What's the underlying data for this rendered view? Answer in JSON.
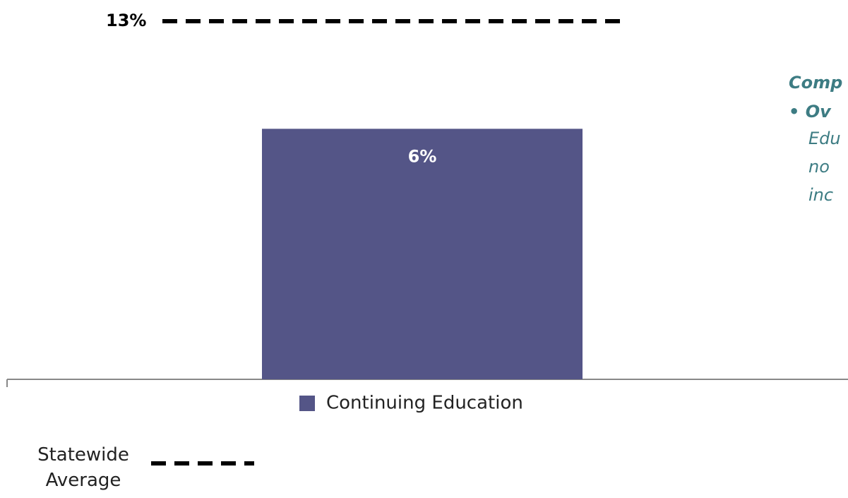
{
  "chart_data": {
    "type": "bar",
    "categories": [
      "Continuing Education"
    ],
    "series": [
      {
        "name": "Continuing Education",
        "color": "#545587",
        "values": [
          6
        ],
        "value_labels": [
          "6%"
        ]
      }
    ],
    "reference_line": {
      "name": "Statewide Average",
      "label": "13%"
    },
    "ylim": [
      0,
      9
    ],
    "notes": [
      "Comp",
      "• Ov",
      "Edu",
      "no",
      "inc"
    ]
  }
}
